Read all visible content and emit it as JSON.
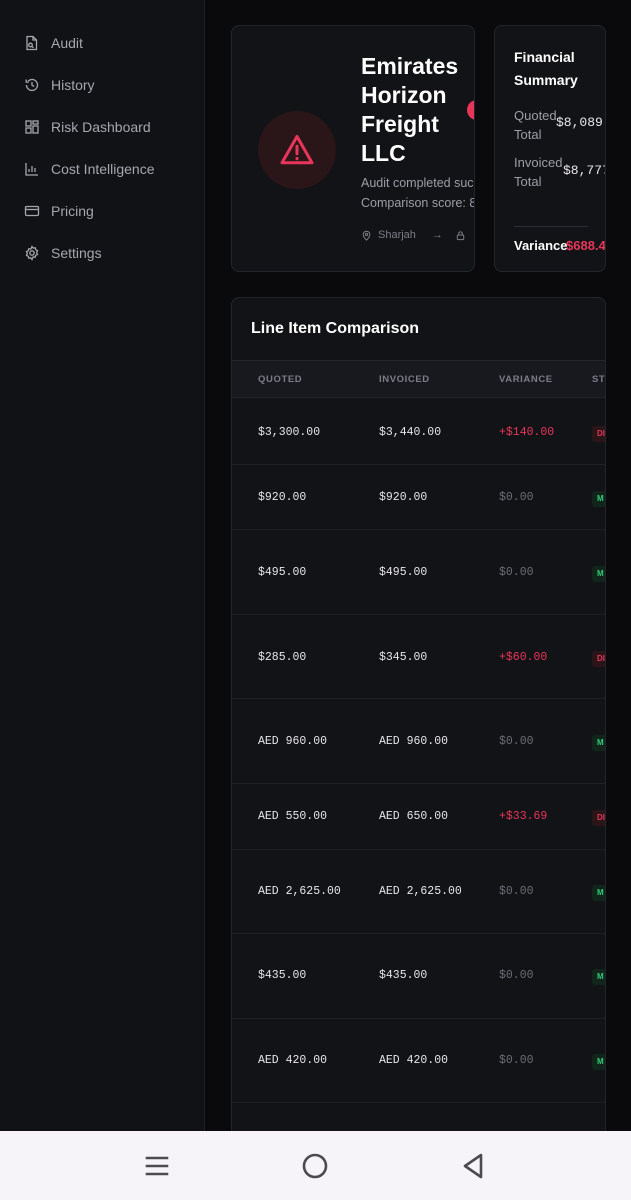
{
  "sidebar": {
    "items": [
      {
        "label": "Audit",
        "icon": "document-search-icon"
      },
      {
        "label": "History",
        "icon": "history-icon"
      },
      {
        "label": "Risk Dashboard",
        "icon": "dashboard-icon"
      },
      {
        "label": "Cost Intelligence",
        "icon": "bar-chart-icon"
      },
      {
        "label": "Pricing",
        "icon": "credit-card-icon"
      },
      {
        "label": "Settings",
        "icon": "gear-icon"
      }
    ]
  },
  "vendor": {
    "name": "Emirates\nHorizon\nFreight\nLLC",
    "status_line": "Audit completed suc",
    "score_line": "Comparison score: 8",
    "origin": "Sharjah",
    "arrow": "→",
    "icon": "alert-triangle-icon"
  },
  "financial": {
    "title": "Financial\nSummary",
    "quoted_label": "Quoted\nTotal",
    "quoted_value": "$8,089.",
    "invoiced_label": "Invoiced\nTotal",
    "invoiced_value": "$8,777",
    "variance_label": "Variance",
    "variance_value": "$688.4"
  },
  "table": {
    "title": "Line Item Comparison",
    "columns": {
      "quoted": "QUOTED",
      "invoiced": "INVOICED",
      "variance": "VARIANCE",
      "status": "STA"
    },
    "rows": [
      {
        "quoted": "$3,300.00",
        "invoiced": "$3,440.00",
        "variance": "+$140.00",
        "status": "DI",
        "type": "disc"
      },
      {
        "quoted": "$920.00",
        "invoiced": "$920.00",
        "variance": "$0.00",
        "status": "M",
        "type": "match"
      },
      {
        "quoted": "$495.00",
        "invoiced": "$495.00",
        "variance": "$0.00",
        "status": "M",
        "type": "match"
      },
      {
        "quoted": "$285.00",
        "invoiced": "$345.00",
        "variance": "+$60.00",
        "status": "DI",
        "type": "disc"
      },
      {
        "quoted": "AED 960.00",
        "invoiced": "AED 960.00",
        "variance": "$0.00",
        "status": "M",
        "type": "match"
      },
      {
        "quoted": "AED 550.00",
        "invoiced": "AED 650.00",
        "variance": "+$33.69",
        "status": "DI",
        "type": "disc"
      },
      {
        "quoted": "AED 2,625.00",
        "invoiced": "AED 2,625.00",
        "variance": "$0.00",
        "status": "M",
        "type": "match"
      },
      {
        "quoted": "$435.00",
        "invoiced": "$435.00",
        "variance": "$0.00",
        "status": "M",
        "type": "match"
      },
      {
        "quoted": "AED 420.00",
        "invoiced": "AED 420.00",
        "variance": "$0.00",
        "status": "M",
        "type": "match"
      }
    ]
  },
  "colors": {
    "accent_red": "#e8365a",
    "accent_green": "#2fcf78",
    "background": "#0a0a0d"
  },
  "navbar": {
    "icons": [
      "menu-icon",
      "home-icon",
      "back-icon"
    ]
  }
}
